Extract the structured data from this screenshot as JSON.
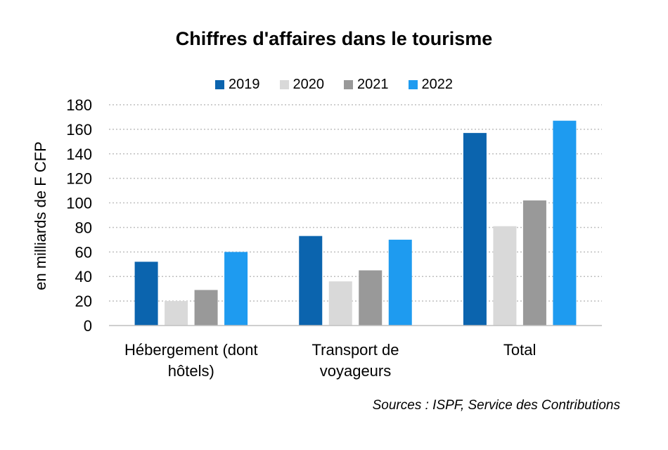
{
  "chart_data": {
    "type": "bar",
    "title": "Chiffres d'affaires dans le tourisme",
    "ylabel": "en milliards de F CFP",
    "xlabel": "",
    "categories": [
      "Hébergement (dont hôtels)",
      "Transport de voyageurs",
      "Total"
    ],
    "category_lines": [
      [
        "Hébergement (dont",
        "hôtels)"
      ],
      [
        "Transport de",
        "voyageurs"
      ],
      [
        "Total"
      ]
    ],
    "series": [
      {
        "name": "2019",
        "color": "#0B64AE",
        "values": [
          52,
          73,
          157
        ]
      },
      {
        "name": "2020",
        "color": "#D9D9D9",
        "values": [
          20,
          36,
          81
        ]
      },
      {
        "name": "2021",
        "color": "#999999",
        "values": [
          29,
          45,
          102
        ]
      },
      {
        "name": "2022",
        "color": "#1E9BF0",
        "values": [
          60,
          70,
          167
        ]
      }
    ],
    "ylim": [
      0,
      180
    ],
    "yticks": [
      "0",
      "20",
      "40",
      "60",
      "80",
      "100",
      "120",
      "140",
      "160",
      "180"
    ],
    "grid": true,
    "legend_position": "top-center"
  },
  "source": "Sources : ISPF, Service des Contributions"
}
